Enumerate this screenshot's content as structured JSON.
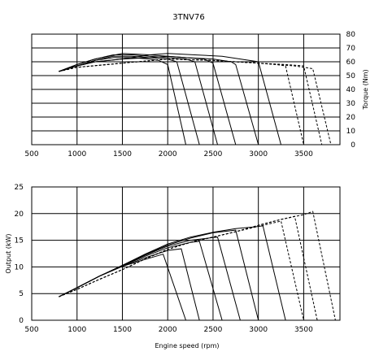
{
  "chart_data": [
    {
      "type": "line",
      "title": "3TNV76",
      "xlabel": "",
      "ylabel": "Torque (Nm)",
      "x_ticks": [
        "500",
        "1000",
        "1500",
        "2000",
        "2500",
        "3000",
        "3500"
      ],
      "y_ticks": [
        "0",
        "10",
        "20",
        "30",
        "40",
        "50",
        "60",
        "70",
        "80"
      ],
      "xlim": [
        500,
        3900
      ],
      "ylim": [
        0,
        80
      ],
      "y_axis_side": "right",
      "grid": true,
      "series": [
        {
          "style": "solid",
          "points": [
            [
              800,
              53
            ],
            [
              1000,
              57
            ],
            [
              1200,
              61
            ],
            [
              1400,
              63
            ],
            [
              1600,
              63
            ],
            [
              1800,
              62
            ],
            [
              1900,
              61
            ],
            [
              2000,
              58
            ],
            [
              2200,
              0
            ]
          ]
        },
        {
          "style": "solid",
          "points": [
            [
              800,
              53
            ],
            [
              1000,
              57
            ],
            [
              1200,
              61
            ],
            [
              1400,
              64
            ],
            [
              1600,
              64
            ],
            [
              1800,
              63
            ],
            [
              2000,
              62
            ],
            [
              2100,
              60
            ],
            [
              2350,
              0
            ]
          ]
        },
        {
          "style": "solid",
          "points": [
            [
              800,
              53
            ],
            [
              1000,
              58
            ],
            [
              1200,
              62
            ],
            [
              1400,
              65
            ],
            [
              1600,
              65
            ],
            [
              1800,
              64
            ],
            [
              2000,
              63
            ],
            [
              2200,
              62
            ],
            [
              2300,
              60
            ],
            [
              2550,
              0
            ]
          ]
        },
        {
          "style": "solid",
          "points": [
            [
              800,
              53
            ],
            [
              1000,
              58
            ],
            [
              1200,
              62
            ],
            [
              1500,
              66
            ],
            [
              1800,
              65
            ],
            [
              2000,
              64
            ],
            [
              2200,
              63
            ],
            [
              2400,
              62
            ],
            [
              2500,
              59
            ],
            [
              2750,
              0
            ]
          ]
        },
        {
          "style": "solid",
          "points": [
            [
              800,
              53
            ],
            [
              1000,
              57
            ],
            [
              1200,
              60
            ],
            [
              1500,
              62
            ],
            [
              1800,
              63
            ],
            [
              2000,
              64
            ],
            [
              2200,
              63
            ],
            [
              2500,
              62
            ],
            [
              2700,
              60
            ],
            [
              2750,
              58
            ],
            [
              3000,
              0
            ]
          ]
        },
        {
          "style": "solid",
          "points": [
            [
              800,
              53
            ],
            [
              1000,
              57
            ],
            [
              1200,
              60
            ],
            [
              1500,
              62
            ],
            [
              1800,
              65
            ],
            [
              2000,
              66
            ],
            [
              2300,
              65
            ],
            [
              2600,
              64
            ],
            [
              2800,
              62
            ],
            [
              3000,
              60
            ],
            [
              3250,
              0
            ]
          ]
        },
        {
          "style": "dashed",
          "points": [
            [
              800,
              53
            ],
            [
              1000,
              56
            ],
            [
              1500,
              59
            ],
            [
              2000,
              62
            ],
            [
              2500,
              61
            ],
            [
              3000,
              59
            ],
            [
              3200,
              58
            ],
            [
              3300,
              57
            ],
            [
              3500,
              0
            ]
          ]
        },
        {
          "style": "dashed",
          "points": [
            [
              800,
              53
            ],
            [
              1000,
              56
            ],
            [
              1500,
              59
            ],
            [
              2000,
              62
            ],
            [
              2500,
              61
            ],
            [
              3000,
              59
            ],
            [
              3300,
              58
            ],
            [
              3500,
              57
            ],
            [
              3700,
              0
            ]
          ]
        },
        {
          "style": "dashed",
          "points": [
            [
              800,
              53
            ],
            [
              1000,
              56
            ],
            [
              1500,
              59
            ],
            [
              2000,
              62
            ],
            [
              2500,
              61
            ],
            [
              3000,
              59
            ],
            [
              3400,
              57
            ],
            [
              3600,
              55
            ],
            [
              3800,
              0
            ]
          ]
        }
      ]
    },
    {
      "type": "line",
      "title": "",
      "xlabel": "Engine speed (rpm)",
      "ylabel": "Output (kW)",
      "x_ticks": [
        "500",
        "1000",
        "1500",
        "2000",
        "2500",
        "3000",
        "3500"
      ],
      "y_ticks": [
        "0",
        "5",
        "10",
        "15",
        "20",
        "25"
      ],
      "xlim": [
        500,
        3900
      ],
      "ylim": [
        0,
        25
      ],
      "y_axis_side": "left",
      "grid": true,
      "series": [
        {
          "style": "solid",
          "points": [
            [
              800,
              4.4
            ],
            [
              1000,
              6.1
            ],
            [
              1250,
              8.3
            ],
            [
              1500,
              10.1
            ],
            [
              1750,
              11.4
            ],
            [
              1950,
              12.4
            ],
            [
              2200,
              0
            ]
          ]
        },
        {
          "style": "solid",
          "points": [
            [
              800,
              4.4
            ],
            [
              1000,
              6.1
            ],
            [
              1250,
              8.3
            ],
            [
              1500,
              10.1
            ],
            [
              1750,
              11.7
            ],
            [
              2000,
              13.1
            ],
            [
              2150,
              13.4
            ],
            [
              2350,
              0
            ]
          ]
        },
        {
          "style": "solid",
          "points": [
            [
              800,
              4.4
            ],
            [
              1000,
              6.1
            ],
            [
              1250,
              8.3
            ],
            [
              1500,
              10.2
            ],
            [
              1750,
              12.0
            ],
            [
              2000,
              13.6
            ],
            [
              2250,
              14.6
            ],
            [
              2350,
              14.8
            ],
            [
              2600,
              0
            ]
          ]
        },
        {
          "style": "solid",
          "points": [
            [
              800,
              4.4
            ],
            [
              1000,
              6.1
            ],
            [
              1250,
              8.3
            ],
            [
              1500,
              10.2
            ],
            [
              1750,
              12.2
            ],
            [
              2000,
              13.9
            ],
            [
              2250,
              15.0
            ],
            [
              2500,
              15.5
            ],
            [
              2550,
              15.6
            ],
            [
              2800,
              0
            ]
          ]
        },
        {
          "style": "solid",
          "points": [
            [
              800,
              4.4
            ],
            [
              1000,
              6.1
            ],
            [
              1250,
              8.3
            ],
            [
              1500,
              10.3
            ],
            [
              1750,
              12.3
            ],
            [
              2000,
              14.1
            ],
            [
              2250,
              15.4
            ],
            [
              2500,
              16.4
            ],
            [
              2750,
              16.9
            ],
            [
              3000,
              0
            ]
          ]
        },
        {
          "style": "solid",
          "points": [
            [
              800,
              4.4
            ],
            [
              1000,
              6.1
            ],
            [
              1250,
              8.3
            ],
            [
              1500,
              10.3
            ],
            [
              1750,
              12.4
            ],
            [
              2000,
              14.3
            ],
            [
              2250,
              15.6
            ],
            [
              2500,
              16.5
            ],
            [
              2750,
              17.2
            ],
            [
              2950,
              17.5
            ],
            [
              3050,
              17.7
            ],
            [
              3300,
              0
            ]
          ]
        },
        {
          "style": "dashed",
          "points": [
            [
              800,
              4.4
            ],
            [
              1000,
              5.8
            ],
            [
              1250,
              7.7
            ],
            [
              1500,
              9.5
            ],
            [
              1750,
              11.5
            ],
            [
              2000,
              13.3
            ],
            [
              2250,
              14.6
            ],
            [
              2500,
              15.6
            ],
            [
              2750,
              16.6
            ],
            [
              3000,
              17.6
            ],
            [
              3250,
              18.6
            ],
            [
              3500,
              0
            ]
          ]
        },
        {
          "style": "dashed",
          "points": [
            [
              800,
              4.4
            ],
            [
              1000,
              5.8
            ],
            [
              1250,
              7.7
            ],
            [
              1500,
              9.5
            ],
            [
              1750,
              11.5
            ],
            [
              2000,
              13.3
            ],
            [
              2250,
              14.6
            ],
            [
              2500,
              15.6
            ],
            [
              2750,
              16.6
            ],
            [
              3000,
              17.8
            ],
            [
              3250,
              18.9
            ],
            [
              3400,
              19.5
            ],
            [
              3650,
              0
            ]
          ]
        },
        {
          "style": "dashed",
          "points": [
            [
              800,
              4.4
            ],
            [
              1000,
              5.8
            ],
            [
              1250,
              7.7
            ],
            [
              1500,
              9.5
            ],
            [
              1750,
              11.5
            ],
            [
              2000,
              13.3
            ],
            [
              2250,
              14.6
            ],
            [
              2500,
              15.6
            ],
            [
              2750,
              16.6
            ],
            [
              3000,
              17.8
            ],
            [
              3250,
              18.9
            ],
            [
              3500,
              19.8
            ],
            [
              3600,
              20.4
            ],
            [
              3850,
              0
            ]
          ]
        }
      ]
    }
  ]
}
